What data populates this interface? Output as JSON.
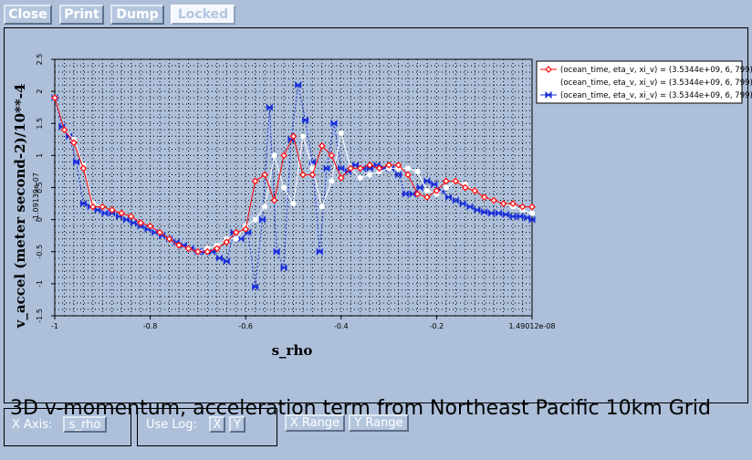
{
  "toolbar": {
    "close": "Close",
    "print": "Print",
    "dump": "Dump",
    "locked": "Locked"
  },
  "controls": {
    "x_axis_label": "X Axis:",
    "x_axis_value": "s_rho",
    "use_log_label": "Use Log:",
    "log_x": "X",
    "log_y": "Y",
    "x_range": "X Range",
    "y_range": "Y Range"
  },
  "caption": "3D v-momentum, acceleration term from Northeast Pacific 10km Grid",
  "chart_data": {
    "type": "line",
    "xlabel": "s_rho",
    "ylabel": "v_accel (meter second-2)/10**-4",
    "xlim": [
      -1,
      0
    ],
    "ylim": [
      -1.5,
      2.5
    ],
    "x_ticks": [
      "-1",
      "-0.8",
      "-0.6",
      "-0.4",
      "-0.2",
      "1.49012e-08"
    ],
    "y_ticks": [
      "-1.5",
      "-1",
      "-0.5",
      "0",
      "0.5",
      "1",
      "1.5",
      "2",
      "2.5"
    ],
    "y_tick_extra": "-1.09139e-07",
    "grid": true,
    "legend_position": "top-right",
    "series": [
      {
        "name": "(ocean_time, eta_v, xi_v) = (3.5344e+09, 6, 799)",
        "color": "#ff0000",
        "marker": "diamond",
        "x": [
          -1,
          -0.98,
          -0.96,
          -0.94,
          -0.92,
          -0.9,
          -0.88,
          -0.86,
          -0.84,
          -0.82,
          -0.8,
          -0.78,
          -0.76,
          -0.74,
          -0.72,
          -0.7,
          -0.68,
          -0.66,
          -0.64,
          -0.62,
          -0.6,
          -0.58,
          -0.56,
          -0.54,
          -0.52,
          -0.5,
          -0.48,
          -0.46,
          -0.44,
          -0.42,
          -0.4,
          -0.38,
          -0.36,
          -0.34,
          -0.32,
          -0.3,
          -0.28,
          -0.26,
          -0.24,
          -0.22,
          -0.2,
          -0.18,
          -0.16,
          -0.14,
          -0.12,
          -0.1,
          -0.08,
          -0.06,
          -0.04,
          -0.02,
          0
        ],
        "y": [
          1.9,
          1.4,
          1.2,
          0.8,
          0.2,
          0.2,
          0.15,
          0.1,
          0.05,
          -0.05,
          -0.1,
          -0.2,
          -0.3,
          -0.4,
          -0.45,
          -0.5,
          -0.5,
          -0.45,
          -0.35,
          -0.2,
          -0.15,
          0.6,
          0.7,
          0.3,
          1.0,
          1.3,
          0.7,
          0.7,
          1.15,
          1.0,
          0.65,
          0.8,
          0.8,
          0.85,
          0.8,
          0.85,
          0.85,
          0.7,
          0.4,
          0.35,
          0.45,
          0.6,
          0.6,
          0.5,
          0.45,
          0.35,
          0.3,
          0.25,
          0.25,
          0.2,
          0.2
        ]
      },
      {
        "name": "(ocean_time, eta_v, xi_v) = (3.5344e+09, 6, 799)",
        "color": "#ffffff",
        "marker": "circle",
        "x": [
          -1,
          -0.98,
          -0.96,
          -0.94,
          -0.92,
          -0.9,
          -0.88,
          -0.86,
          -0.84,
          -0.82,
          -0.8,
          -0.78,
          -0.76,
          -0.74,
          -0.72,
          -0.7,
          -0.68,
          -0.66,
          -0.64,
          -0.62,
          -0.6,
          -0.58,
          -0.56,
          -0.54,
          -0.52,
          -0.5,
          -0.48,
          -0.46,
          -0.44,
          -0.42,
          -0.4,
          -0.38,
          -0.36,
          -0.34,
          -0.32,
          -0.3,
          -0.28,
          -0.26,
          -0.24,
          -0.22,
          -0.2,
          -0.18,
          -0.16,
          -0.14,
          -0.12,
          -0.1,
          -0.08,
          -0.06,
          -0.04,
          -0.02,
          0
        ],
        "y": [
          1.9,
          1.4,
          1.25,
          0.85,
          0.25,
          0.2,
          0.15,
          0.1,
          0.05,
          -0.05,
          -0.1,
          -0.2,
          -0.3,
          -0.4,
          -0.45,
          -0.5,
          -0.45,
          -0.4,
          -0.3,
          -0.3,
          -0.1,
          0.0,
          0.2,
          1.0,
          0.5,
          0.25,
          1.3,
          0.8,
          0.2,
          0.6,
          1.35,
          0.8,
          0.65,
          0.7,
          0.75,
          0.8,
          0.8,
          0.8,
          0.75,
          0.45,
          0.4,
          0.5,
          0.6,
          0.55,
          0.45,
          0.35,
          0.3,
          0.25,
          0.2,
          0.15,
          0.1
        ]
      },
      {
        "name": "(ocean_time, eta_v, xi_v) = (3.5344e+09, 6, 799)",
        "color": "#1a2fd9",
        "marker": "bowtie",
        "x": [
          -1,
          -0.985,
          -0.97,
          -0.955,
          -0.94,
          -0.925,
          -0.91,
          -0.895,
          -0.88,
          -0.865,
          -0.85,
          -0.835,
          -0.82,
          -0.805,
          -0.79,
          -0.775,
          -0.76,
          -0.745,
          -0.73,
          -0.715,
          -0.7,
          -0.685,
          -0.67,
          -0.655,
          -0.64,
          -0.625,
          -0.61,
          -0.595,
          -0.58,
          -0.565,
          -0.55,
          -0.535,
          -0.52,
          -0.505,
          -0.49,
          -0.475,
          -0.46,
          -0.445,
          -0.43,
          -0.415,
          -0.4,
          -0.385,
          -0.37,
          -0.355,
          -0.34,
          -0.325,
          -0.31,
          -0.295,
          -0.28,
          -0.265,
          -0.25,
          -0.235,
          -0.22,
          -0.205,
          -0.19,
          -0.175,
          -0.16,
          -0.145,
          -0.13,
          -0.115,
          -0.1,
          -0.085,
          -0.07,
          -0.055,
          -0.04,
          -0.025,
          -0.01,
          0
        ],
        "y": [
          1.9,
          1.45,
          1.3,
          0.9,
          0.25,
          0.2,
          0.15,
          0.1,
          0.1,
          0.05,
          0.0,
          -0.05,
          -0.1,
          -0.15,
          -0.2,
          -0.25,
          -0.3,
          -0.35,
          -0.4,
          -0.45,
          -0.5,
          -0.5,
          -0.5,
          -0.6,
          -0.65,
          -0.2,
          -0.3,
          -0.2,
          -1.05,
          0.0,
          1.75,
          -0.5,
          -0.75,
          1.25,
          2.1,
          1.55,
          0.9,
          -0.5,
          0.8,
          1.5,
          0.8,
          0.75,
          0.85,
          0.8,
          0.8,
          0.85,
          0.8,
          0.8,
          0.7,
          0.4,
          0.4,
          0.5,
          0.6,
          0.55,
          0.45,
          0.35,
          0.3,
          0.25,
          0.2,
          0.15,
          0.12,
          0.1,
          0.1,
          0.08,
          0.05,
          0.05,
          0.03,
          0.0
        ]
      }
    ]
  }
}
